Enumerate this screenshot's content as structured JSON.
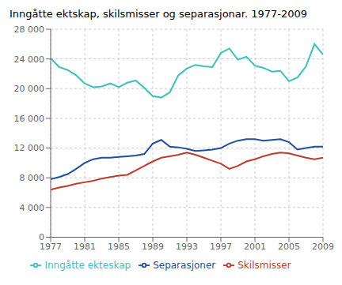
{
  "chart_data": {
    "type": "line",
    "title": "Inngåtte ektskap, skilsmisser og separasjonar. 1977-2009",
    "x": [
      1977,
      1978,
      1979,
      1980,
      1981,
      1982,
      1983,
      1984,
      1985,
      1986,
      1987,
      1988,
      1989,
      1990,
      1991,
      1992,
      1993,
      1994,
      1995,
      1996,
      1997,
      1998,
      1999,
      2000,
      2001,
      2002,
      2003,
      2004,
      2005,
      2006,
      2007,
      2008,
      2009
    ],
    "series": [
      {
        "name": "Skilsmisser",
        "color": "#c0392b",
        "values": [
          6400,
          6700,
          6900,
          7200,
          7400,
          7600,
          7900,
          8100,
          8300,
          8400,
          9000,
          9600,
          10200,
          10700,
          10900,
          11100,
          11400,
          11100,
          10700,
          10300,
          9900,
          9200,
          9600,
          10200,
          10500,
          10900,
          11200,
          11400,
          11300,
          11000,
          10700,
          10500,
          10700
        ]
      },
      {
        "name": "Separasjoner",
        "color": "#1f4e9c",
        "values": [
          7800,
          8100,
          8500,
          9200,
          10000,
          10500,
          10700,
          10700,
          10800,
          10900,
          11000,
          11200,
          12600,
          13100,
          12200,
          12100,
          11900,
          11600,
          11700,
          11800,
          12000,
          12600,
          13000,
          13200,
          13200,
          13000,
          13100,
          13200,
          12800,
          11800,
          12000,
          12200,
          12200
        ]
      },
      {
        "name": "Inngåtte ekteskap",
        "color": "#3dbfbf",
        "values": [
          24100,
          22900,
          22500,
          21800,
          20700,
          20200,
          20300,
          20700,
          20200,
          20800,
          21100,
          20100,
          19000,
          18800,
          19500,
          21800,
          22700,
          23200,
          23000,
          22900,
          24800,
          25400,
          23900,
          24300,
          23100,
          22800,
          22300,
          22400,
          21000,
          21500,
          23000,
          26000,
          24600
        ]
      }
    ],
    "xlim": [
      1977,
      2009
    ],
    "xticks": [
      1977,
      1981,
      1985,
      1989,
      1993,
      1997,
      2001,
      2005,
      2009
    ],
    "ylim": [
      0,
      28000
    ],
    "yticks": [
      0,
      {
        "value": 4000,
        "label": "4 000"
      },
      {
        "value": 8000,
        "label": "8 000"
      },
      {
        "value": 12000,
        "label": "12 000"
      },
      {
        "value": 16000,
        "label": "16 000"
      },
      {
        "value": 20000,
        "label": "20 000"
      },
      {
        "value": 24000,
        "label": "24 000"
      },
      {
        "value": 28000,
        "label": "28 000"
      }
    ],
    "grid": true,
    "legend": "bottom"
  }
}
